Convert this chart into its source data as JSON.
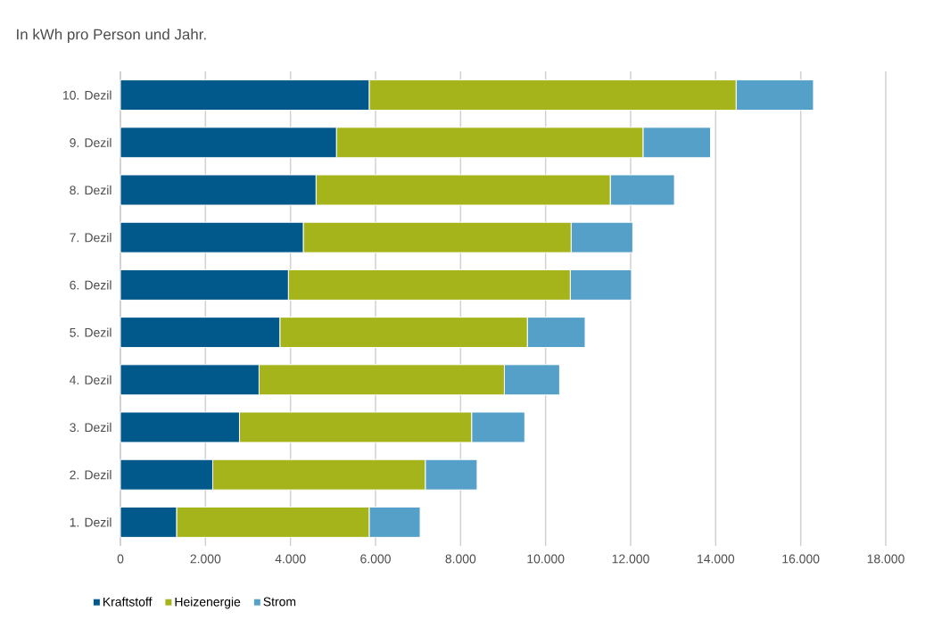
{
  "chart_data": {
    "type": "bar",
    "orientation": "horizontal",
    "stacked": true,
    "title": "In kWh pro Person und Jahr.",
    "categories": [
      "10. Dezil",
      "9. Dezil",
      "8. Dezil",
      "7. Dezil",
      "6. Dezil",
      "5. Dezil",
      "4. Dezil",
      "3. Dezil",
      "2. Dezil",
      "1. Dezil"
    ],
    "series": [
      {
        "name": "Kraftstoff",
        "color": "#00598a",
        "values": [
          5850,
          5080,
          4600,
          4300,
          3950,
          3750,
          3260,
          2800,
          2170,
          1320
        ]
      },
      {
        "name": "Heizenergie",
        "color": "#a5b41a",
        "values": [
          8630,
          7210,
          6920,
          6300,
          6630,
          5820,
          5770,
          5460,
          5000,
          4530
        ]
      },
      {
        "name": "Strom",
        "color": "#55a0c8",
        "values": [
          1820,
          1590,
          1510,
          1450,
          1440,
          1360,
          1300,
          1250,
          1220,
          1200
        ]
      }
    ],
    "xlim": [
      0,
      18000
    ],
    "xticks": [
      0,
      {
        "value": 2000,
        "label": "2.000"
      },
      {
        "value": 4000,
        "label": "4.000"
      },
      {
        "value": 6000,
        "label": "6.000"
      },
      {
        "value": 8000,
        "label": "8.000"
      },
      {
        "value": 10000,
        "label": "10.000"
      },
      {
        "value": 12000,
        "label": "12.000"
      },
      {
        "value": 14000,
        "label": "14.000"
      },
      {
        "value": 16000,
        "label": "16.000"
      },
      {
        "value": 18000,
        "label": "18.000"
      }
    ],
    "grid": "x",
    "legend": "bottom"
  }
}
